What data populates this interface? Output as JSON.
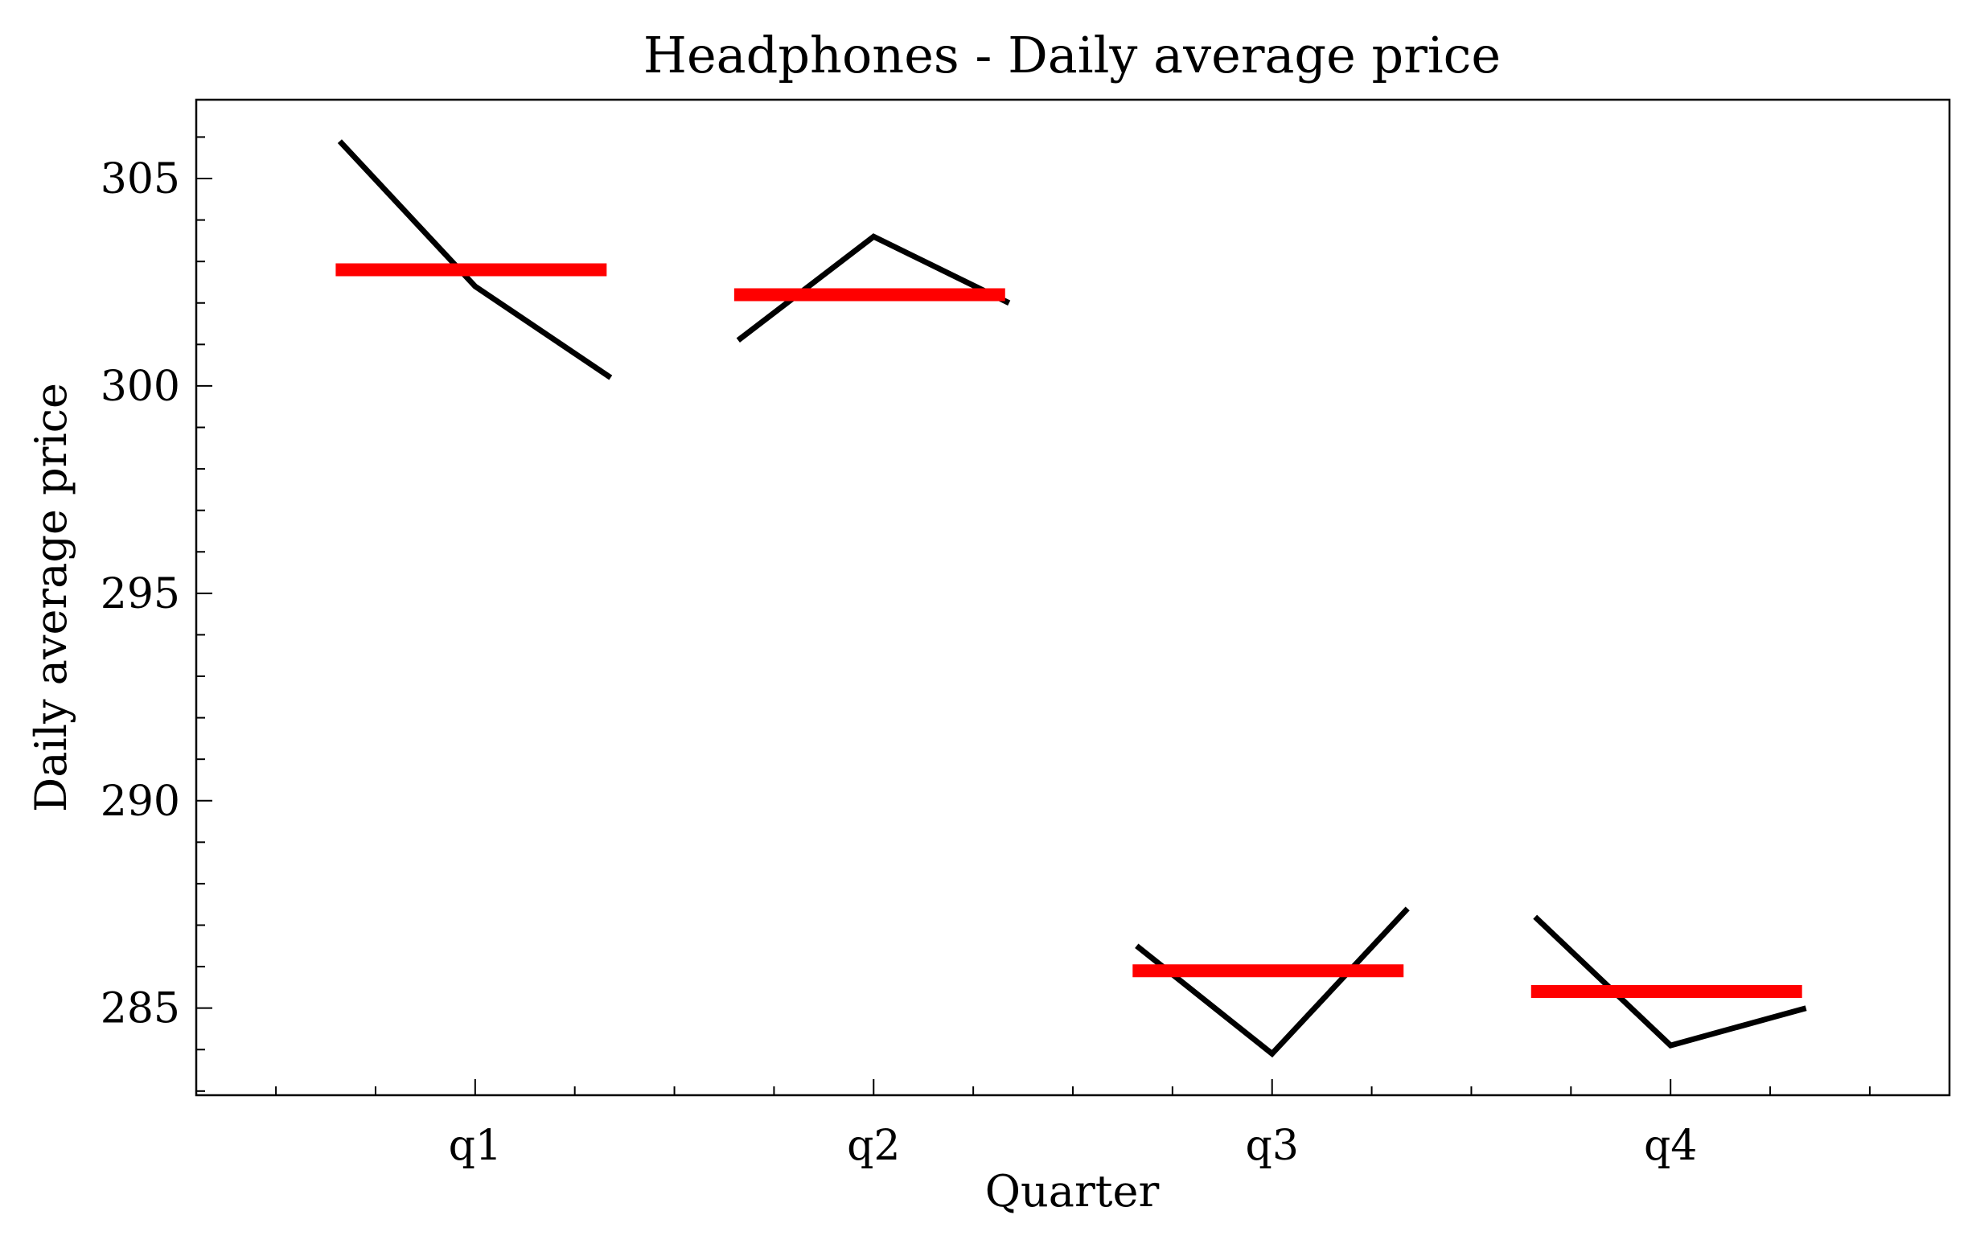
{
  "chart_data": {
    "type": "line",
    "title": "Headphones - Daily average price",
    "xlabel": "Quarter",
    "ylabel": "Daily average price",
    "categories": [
      "q1",
      "q2",
      "q3",
      "q4"
    ],
    "ylim": [
      282.9,
      306.9
    ],
    "xlim": [
      0.3,
      4.7
    ],
    "y_ticks": [
      285,
      290,
      295,
      300,
      305
    ],
    "y_tick_labels": [
      "285",
      "290",
      "295",
      "300",
      "305"
    ],
    "grid": false,
    "legend": "none",
    "series": [
      {
        "category": "q1",
        "x": [
          0.66,
          1.0,
          1.34
        ],
        "values": [
          305.9,
          302.4,
          300.2
        ],
        "mean": 302.8
      },
      {
        "category": "q2",
        "x": [
          1.66,
          2.0,
          2.34
        ],
        "values": [
          301.1,
          303.6,
          302.0
        ],
        "mean": 302.2
      },
      {
        "category": "q3",
        "x": [
          2.66,
          3.0,
          3.34
        ],
        "values": [
          286.5,
          283.9,
          287.4
        ],
        "mean": 285.9
      },
      {
        "category": "q4",
        "x": [
          3.66,
          4.0,
          4.34
        ],
        "values": [
          287.2,
          284.1,
          285.0
        ],
        "mean": 285.4
      }
    ],
    "colors": {
      "line": "#000000",
      "mean": "#ff0000",
      "axes": "#000000"
    }
  }
}
